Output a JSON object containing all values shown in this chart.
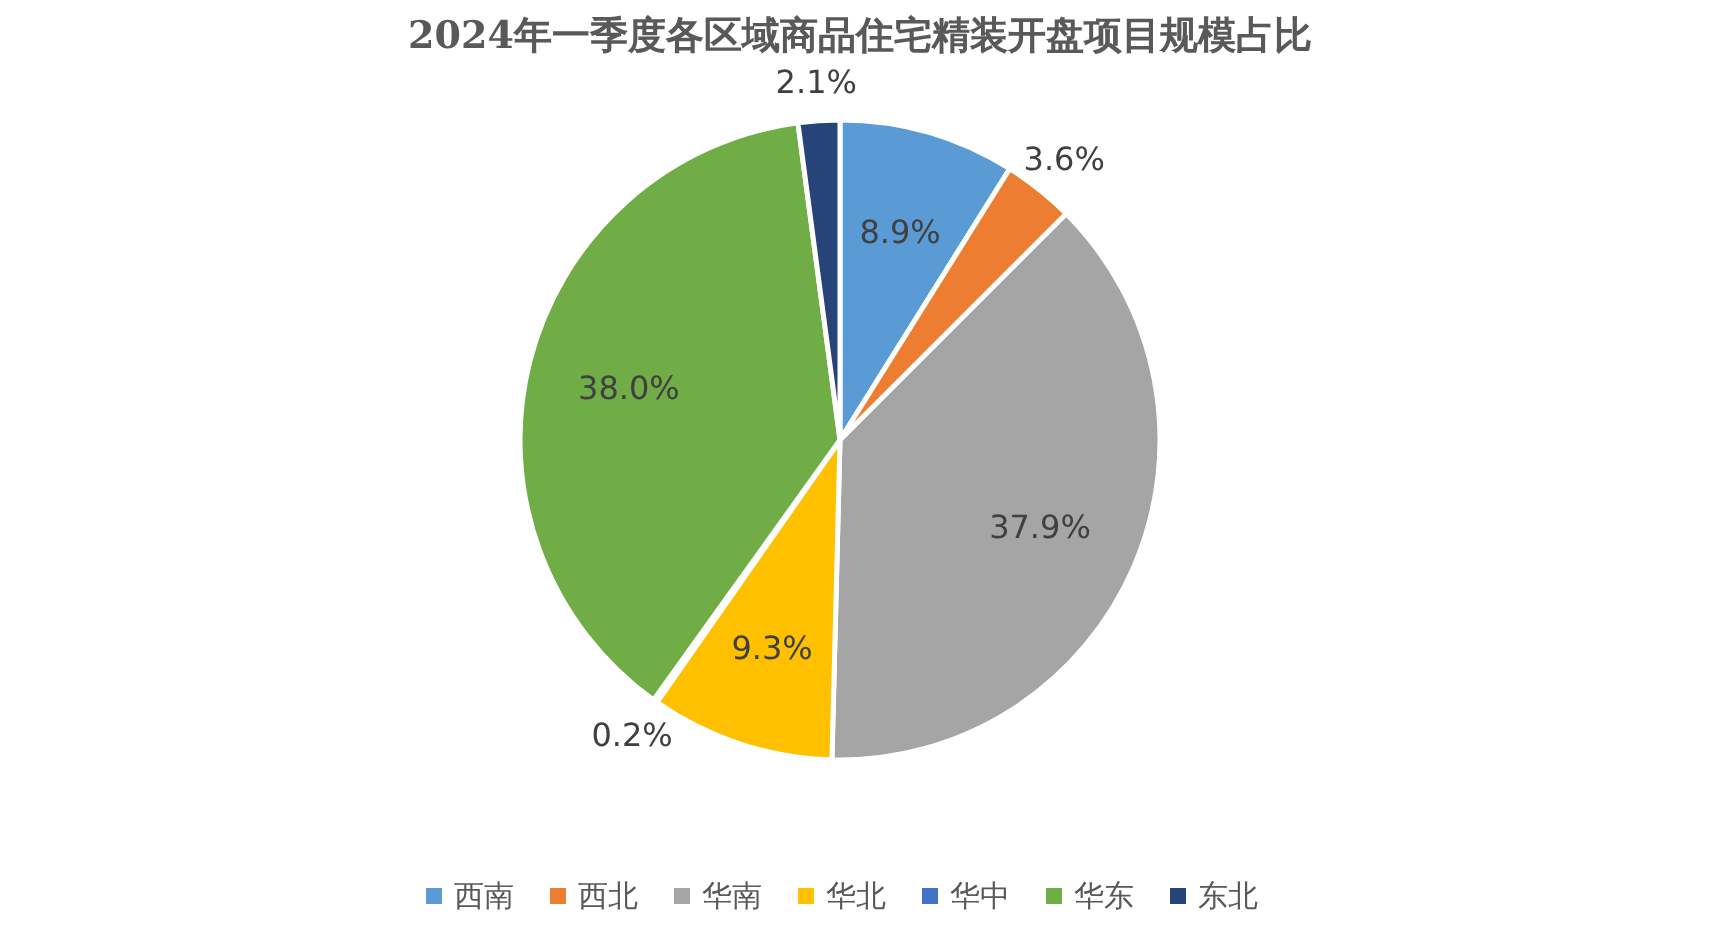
{
  "chart_data": {
    "type": "pie",
    "title": "2024年一季度各区域商品住宅精装开盘项目规模占比",
    "categories": [
      "西南",
      "西北",
      "华南",
      "华北",
      "华中",
      "华东",
      "东北"
    ],
    "values": [
      8.9,
      3.6,
      37.9,
      9.3,
      0.2,
      38.0,
      2.1
    ],
    "colors": [
      "#5b9bd5",
      "#ed7d31",
      "#a5a5a5",
      "#ffc000",
      "#4472c4",
      "#70ad47",
      "#264478"
    ],
    "value_labels": [
      "8.9%",
      "3.6%",
      "37.9%",
      "9.3%",
      "0.2%",
      "38.0%",
      "2.1%"
    ],
    "legend": "bottom"
  }
}
